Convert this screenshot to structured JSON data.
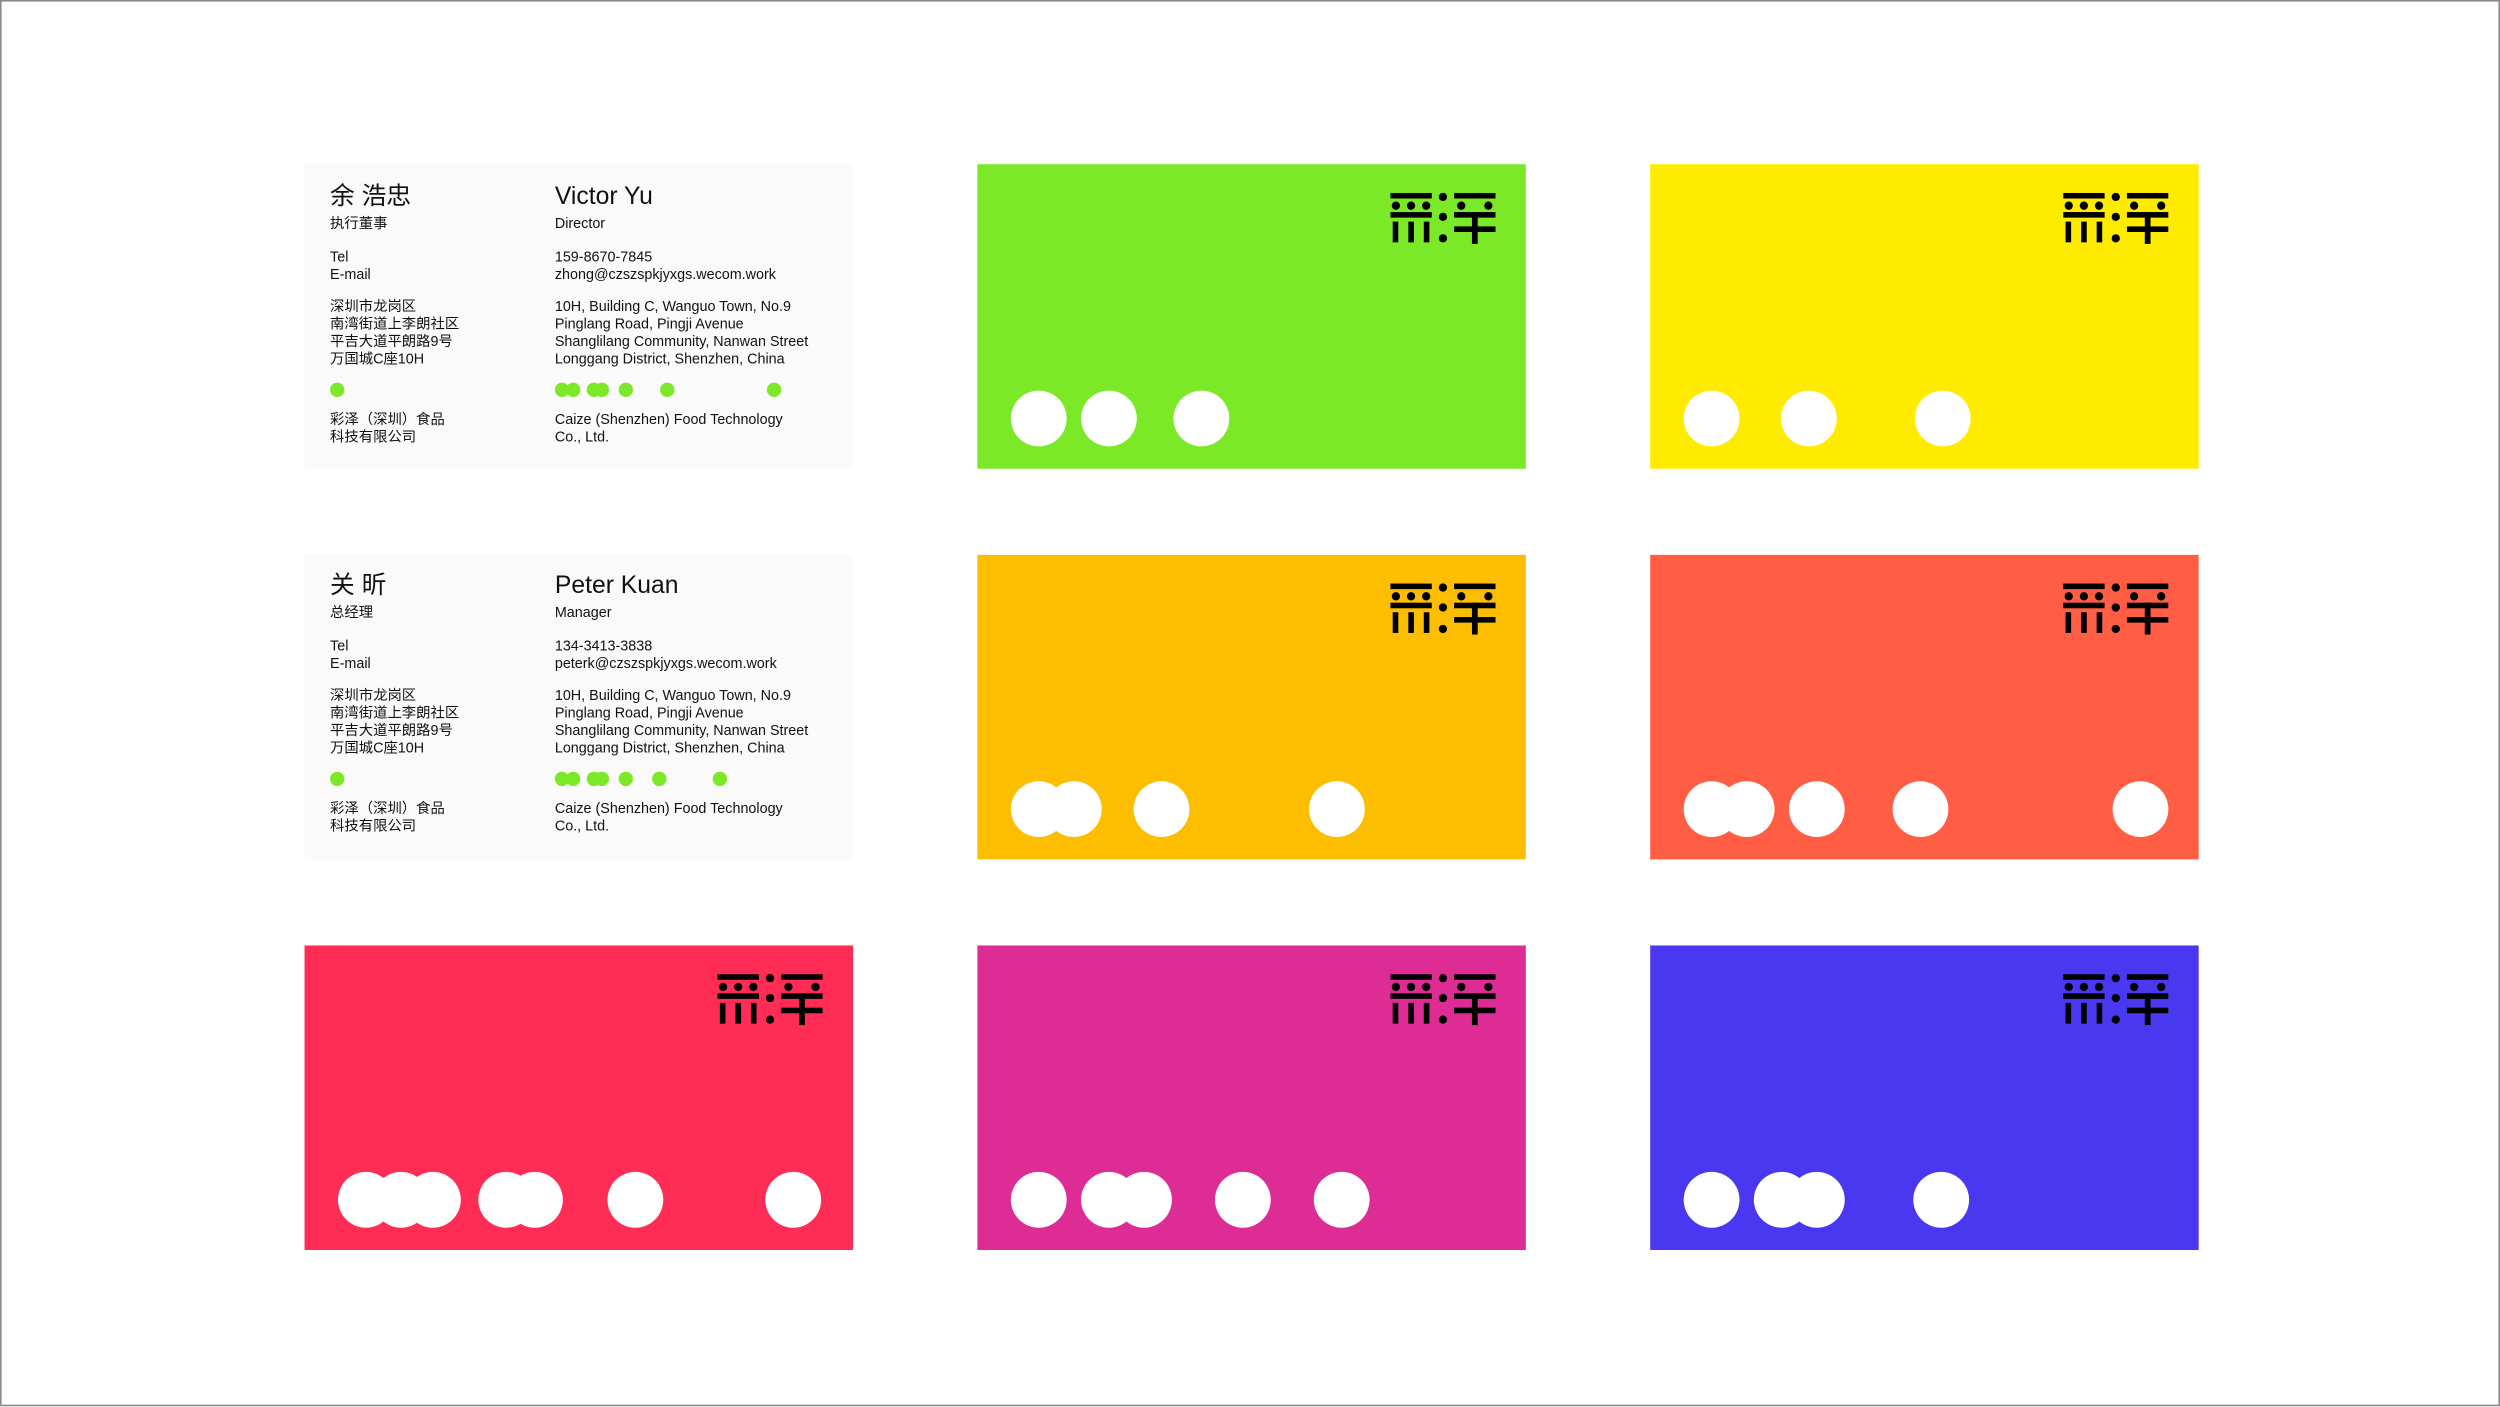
{
  "accent_color": "#7BE928",
  "info_cards": [
    {
      "name_cn": "余 浩忠",
      "title_cn": "执行董事",
      "name_en": "Victor Yu",
      "title_en": "Director",
      "labels": [
        "Tel",
        "E-mail"
      ],
      "tel": "159-8670-7845",
      "email": "zhong@czszspkjyxgs.wecom.work",
      "address_cn": [
        "深圳市龙岗区",
        "南湾街道上李朗社区",
        "平吉大道平朗路9号",
        "万国城C座10H"
      ],
      "address_en": [
        "10H, Building C, Wanguo Town, No.9",
        "Pinglang Road, Pingji Avenue",
        "Shanglilang Community, Nanwan Street",
        "Longgang District, Shenzhen, China"
      ],
      "company_cn": [
        "彩泽（深圳）食品",
        "科技有限公司"
      ],
      "company_en": [
        "Caize (Shenzhen) Food Technology",
        "Co., Ltd."
      ]
    },
    {
      "name_cn": "关 昕",
      "title_cn": "总经理",
      "name_en": "Peter Kuan",
      "title_en": "Manager",
      "labels": [
        "Tel",
        "E-mail"
      ],
      "tel": "134-3413-3838",
      "email": "peterk@czszspkjyxgs.wecom.work",
      "address_cn": [
        "深圳市龙岗区",
        "南湾街道上李朗社区",
        "平吉大道平朗路9号",
        "万国城C座10H"
      ],
      "address_en": [
        "10H, Building C, Wanguo Town, No.9",
        "Pinglang Road, Pingji Avenue",
        "Shanglilang Community, Nanwan Street",
        "Longgang District, Shenzhen, China"
      ],
      "company_cn": [
        "彩泽（深圳）食品",
        "科技有限公司"
      ],
      "company_en": [
        "Caize (Shenzhen) Food Technology",
        "Co., Ltd."
      ]
    }
  ],
  "color_cards": [
    {
      "color": "#7BE928",
      "logo": "caize-logo"
    },
    {
      "color": "#FFEB00",
      "logo": "caize-logo"
    },
    {
      "color": "#FDBD00",
      "logo": "caize-logo"
    },
    {
      "color": "#FF5E45",
      "logo": "caize-logo"
    },
    {
      "color": "#FF2D55",
      "logo": "caize-logo"
    },
    {
      "color": "#DE2C95",
      "logo": "caize-logo"
    },
    {
      "color": "#4A38F0",
      "logo": "caize-logo"
    }
  ]
}
